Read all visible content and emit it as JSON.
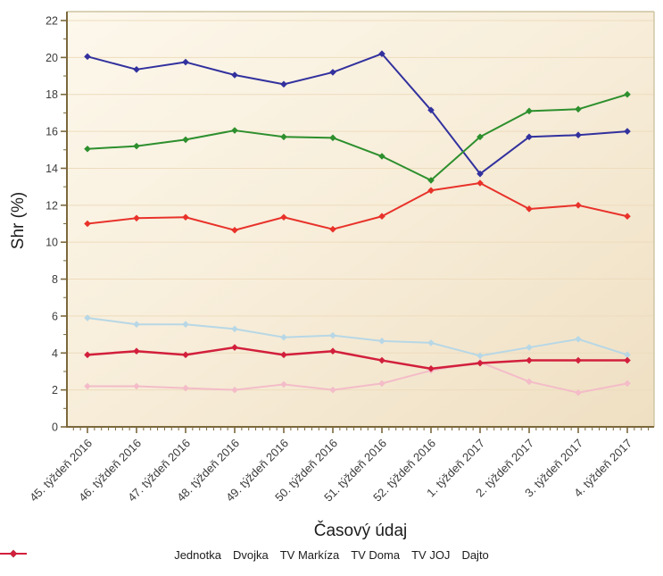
{
  "chart_data": {
    "type": "line",
    "title": "",
    "xlabel": "Časový údaj",
    "ylabel": "Shr (%)",
    "ylim": [
      0,
      22
    ],
    "y_tick_step": 2,
    "grid": "horizontal",
    "legend_position": "bottom",
    "categories": [
      "45. týždeň 2016",
      "46. týždeň 2016",
      "47. týždeň 2016",
      "48. týždeň 2016",
      "49. týždeň 2016",
      "50. týždeň 2016",
      "51. týždeň 2016",
      "52. týždeň 2016",
      "1. týždeň 2017",
      "2. týždeň 2017",
      "3. týždeň 2017",
      "4. týždeň 2017"
    ],
    "series": [
      {
        "name": "Jednotka",
        "color": "#e8322a",
        "values": [
          11.0,
          11.3,
          11.35,
          10.65,
          11.35,
          10.7,
          11.4,
          12.8,
          13.2,
          11.8,
          12.0,
          11.4
        ]
      },
      {
        "name": "Dvojka",
        "color": "#f3bcc8",
        "values": [
          2.2,
          2.2,
          2.1,
          2.0,
          2.3,
          2.0,
          2.35,
          3.05,
          3.5,
          2.45,
          1.85,
          2.35
        ]
      },
      {
        "name": "TV Markíza",
        "color": "#32319e",
        "values": [
          20.05,
          19.35,
          19.75,
          19.05,
          18.55,
          19.2,
          20.2,
          17.15,
          13.7,
          15.7,
          15.8,
          16.0
        ]
      },
      {
        "name": "TV Doma",
        "color": "#b7d7e6",
        "values": [
          5.9,
          5.55,
          5.55,
          5.3,
          4.85,
          4.95,
          4.65,
          4.55,
          3.85,
          4.3,
          4.75,
          3.9
        ]
      },
      {
        "name": "TV JOJ",
        "color": "#2d8f2d",
        "values": [
          15.05,
          15.2,
          15.55,
          16.05,
          15.7,
          15.65,
          14.65,
          13.35,
          15.7,
          17.1,
          17.2,
          18.0
        ]
      },
      {
        "name": "Dajto",
        "color": "#d21f3c",
        "values": [
          3.9,
          4.1,
          3.9,
          4.3,
          3.9,
          4.1,
          3.6,
          3.15,
          3.45,
          3.6,
          3.6,
          3.6
        ]
      }
    ]
  },
  "colors": {
    "plot_bg_top": "#fdf8ec",
    "plot_bg_mid": "#f7edd9",
    "plot_bg_bottom": "#efdfc2",
    "gridline": "#eedcbd",
    "axis": "#7b683c",
    "border_light": "#cdc3a0",
    "tick_label": "#3c3c3c",
    "title_text": "#1c1c1c"
  }
}
